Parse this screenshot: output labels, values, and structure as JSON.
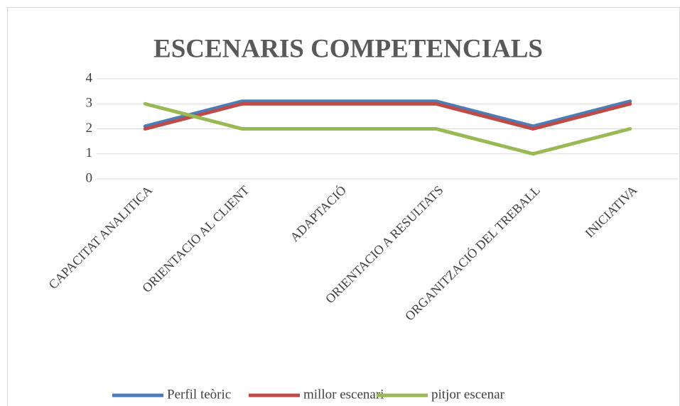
{
  "chart_data": {
    "type": "line",
    "title": "ESCENARIS COMPETENCIALS",
    "categories": [
      "CAPACITAT ANALITICA",
      "ORIENTACIO AL CLIENT",
      "ADAPTACIÓ",
      "ORIENTACIO A RESULTATS",
      "ORGANITZACIÓ DEL TREBALL",
      "INICIATIVA"
    ],
    "series": [
      {
        "name": "Perfil teòric",
        "color": "#4a7ebb",
        "values": [
          2.1,
          3.1,
          3.1,
          3.1,
          2.1,
          3.1
        ]
      },
      {
        "name": "millor escenari",
        "color": "#be4b48",
        "values": [
          2,
          3,
          3,
          3,
          2,
          3
        ]
      },
      {
        "name": "pitjor escenar",
        "color": "#98b954",
        "values": [
          3,
          2,
          2,
          2,
          1,
          2
        ]
      }
    ],
    "ylim": [
      0,
      4
    ],
    "yticks": [
      0,
      1,
      2,
      3,
      4
    ],
    "grid": true,
    "legend": "bottom"
  }
}
